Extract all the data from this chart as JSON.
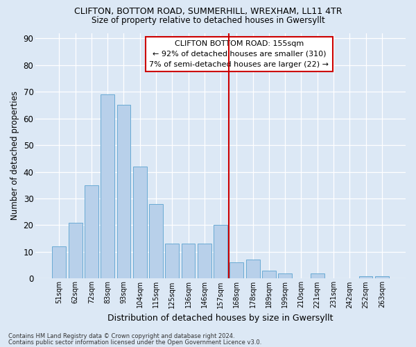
{
  "title1": "CLIFTON, BOTTOM ROAD, SUMMERHILL, WREXHAM, LL11 4TR",
  "title2": "Size of property relative to detached houses in Gwersyllt",
  "xlabel": "Distribution of detached houses by size in Gwersyllt",
  "ylabel": "Number of detached properties",
  "categories": [
    "51sqm",
    "62sqm",
    "72sqm",
    "83sqm",
    "93sqm",
    "104sqm",
    "115sqm",
    "125sqm",
    "136sqm",
    "146sqm",
    "157sqm",
    "168sqm",
    "178sqm",
    "189sqm",
    "199sqm",
    "210sqm",
    "221sqm",
    "231sqm",
    "242sqm",
    "252sqm",
    "263sqm"
  ],
  "values": [
    12,
    21,
    35,
    69,
    65,
    42,
    28,
    13,
    13,
    13,
    20,
    6,
    7,
    3,
    2,
    0,
    2,
    0,
    0,
    1,
    1
  ],
  "bar_color": "#b8d0ea",
  "bar_edge_color": "#6aaad4",
  "vline_x_index": 10.5,
  "vline_color": "#cc0000",
  "annotation_title": "CLIFTON BOTTOM ROAD: 155sqm",
  "annotation_line1": "← 92% of detached houses are smaller (310)",
  "annotation_line2": "7% of semi-detached houses are larger (22) →",
  "ylim": [
    0,
    92
  ],
  "yticks": [
    0,
    10,
    20,
    30,
    40,
    50,
    60,
    70,
    80,
    90
  ],
  "footnote1": "Contains HM Land Registry data © Crown copyright and database right 2024.",
  "footnote2": "Contains public sector information licensed under the Open Government Licence v3.0.",
  "bg_color": "#dce8f5",
  "plot_bg_color": "#dce8f5"
}
